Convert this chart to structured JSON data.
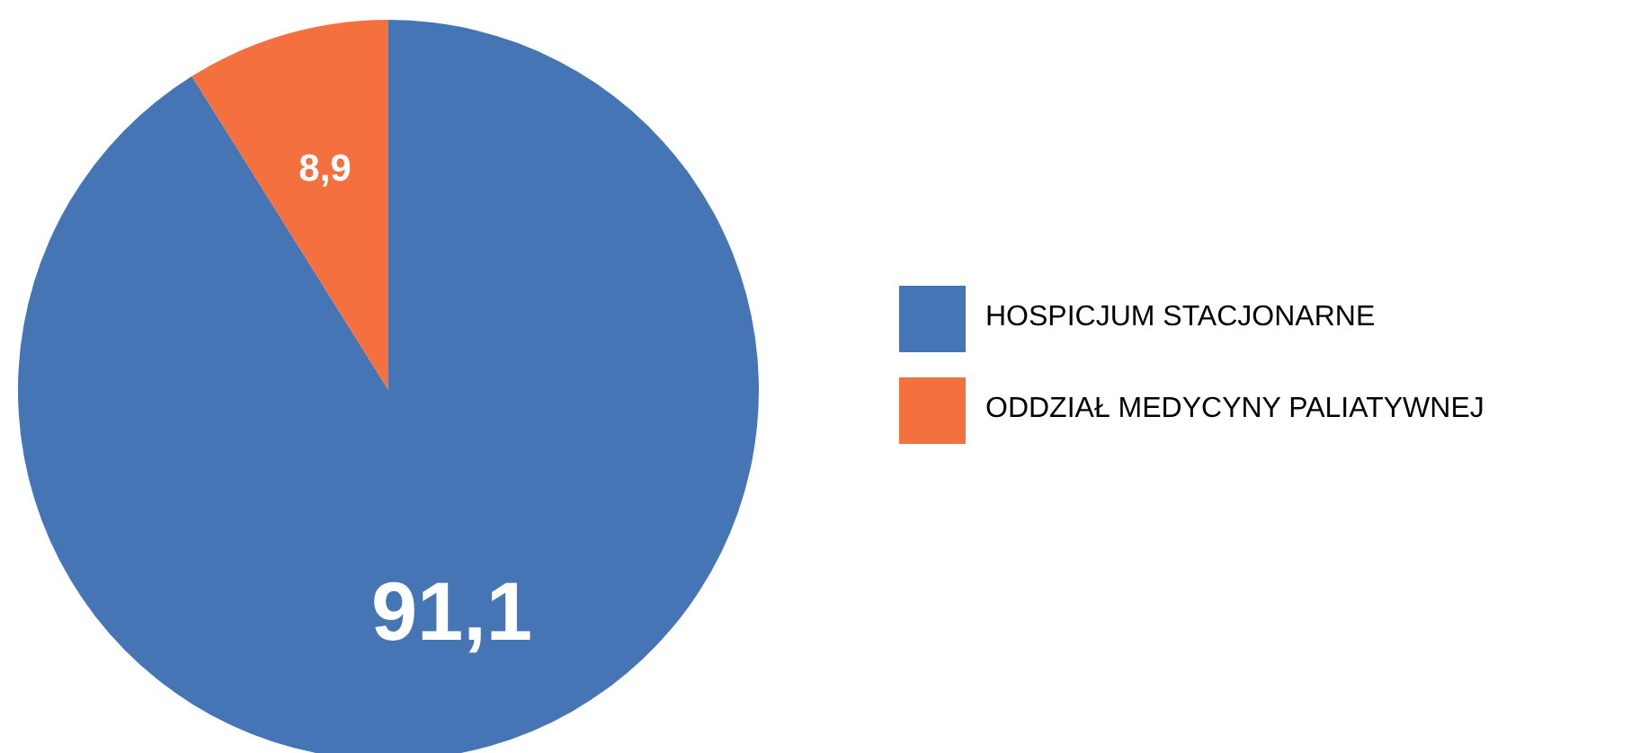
{
  "chart_data": {
    "type": "pie",
    "categories": [
      "HOSPICJUM STACJONARNE",
      "ODDZIAŁ MEDYCYNY PALIATYWNEJ"
    ],
    "values": [
      91.1,
      8.9
    ],
    "value_labels": [
      "91,1",
      "8,9"
    ],
    "colors": [
      "#4575b5",
      "#f4703f"
    ],
    "legend": "right"
  }
}
